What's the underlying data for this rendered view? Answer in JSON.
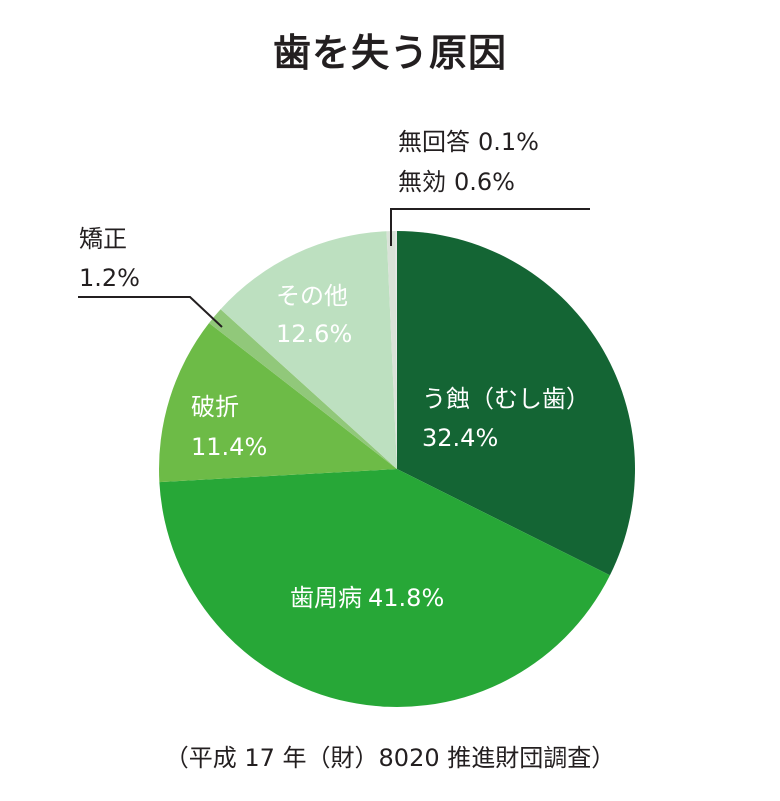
{
  "chart_data": {
    "type": "pie",
    "title": "歯を失う原因",
    "source": "（平成 17 年（財）8020 推進財団調査）",
    "start_angle_deg": 0,
    "direction": "clockwise",
    "slices": [
      {
        "name": "う蝕（むし歯）",
        "value": 32.4,
        "value_label": "32.4%",
        "color": "#146534"
      },
      {
        "name": "歯周病",
        "value": 41.8,
        "value_label": "41.8%",
        "color": "#27a737"
      },
      {
        "name": "破折",
        "value": 11.4,
        "value_label": "11.4%",
        "color": "#6dbb47"
      },
      {
        "name": "矯正",
        "value": 1.2,
        "value_label": "1.2%",
        "color": "#91c87a"
      },
      {
        "name": "その他",
        "value": 12.6,
        "value_label": "12.6%",
        "color": "#bde0c0"
      },
      {
        "name": "無効",
        "value": 0.6,
        "value_label": "0.6%",
        "color": "#d9e2d8"
      },
      {
        "name": "無回答",
        "value": 0.1,
        "value_label": "0.1%",
        "color": "#e6e6e6"
      }
    ]
  }
}
